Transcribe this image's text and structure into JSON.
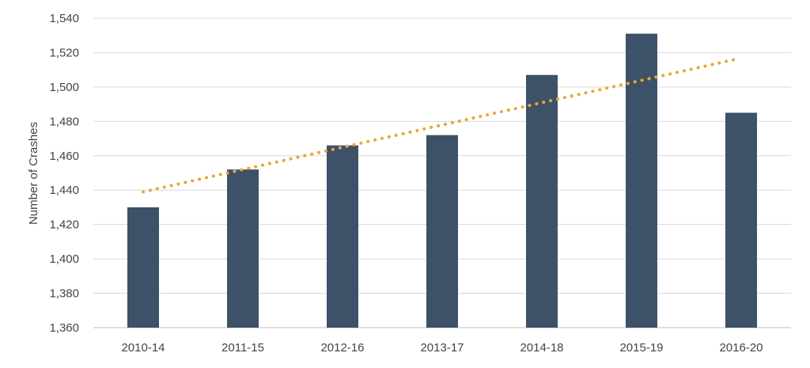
{
  "chart_data": {
    "type": "bar",
    "title": "",
    "xlabel": "",
    "ylabel": "Number of Crashes",
    "categories": [
      "2010-14",
      "2011-15",
      "2012-16",
      "2013-17",
      "2014-18",
      "2015-19",
      "2016-20"
    ],
    "series": [
      {
        "values": [
          1430,
          1452,
          1466,
          1472,
          1507,
          1531,
          1485
        ]
      }
    ],
    "trendline": {
      "style": "dotted",
      "start": 1439,
      "end": 1516
    },
    "ylim": [
      1360,
      1540
    ],
    "yticks": [
      1360,
      1380,
      1400,
      1420,
      1440,
      1460,
      1480,
      1500,
      1520,
      1540
    ],
    "ytick_labels": [
      "1,360",
      "1,380",
      "1,400",
      "1,420",
      "1,440",
      "1,460",
      "1,480",
      "1,500",
      "1,520",
      "1,540"
    ],
    "grid": true,
    "legend": "none",
    "colors": {
      "bar": "#3d5168",
      "trend": "#e8a838",
      "grid": "#d9d9d9",
      "axis": "#bfbfbf"
    }
  }
}
